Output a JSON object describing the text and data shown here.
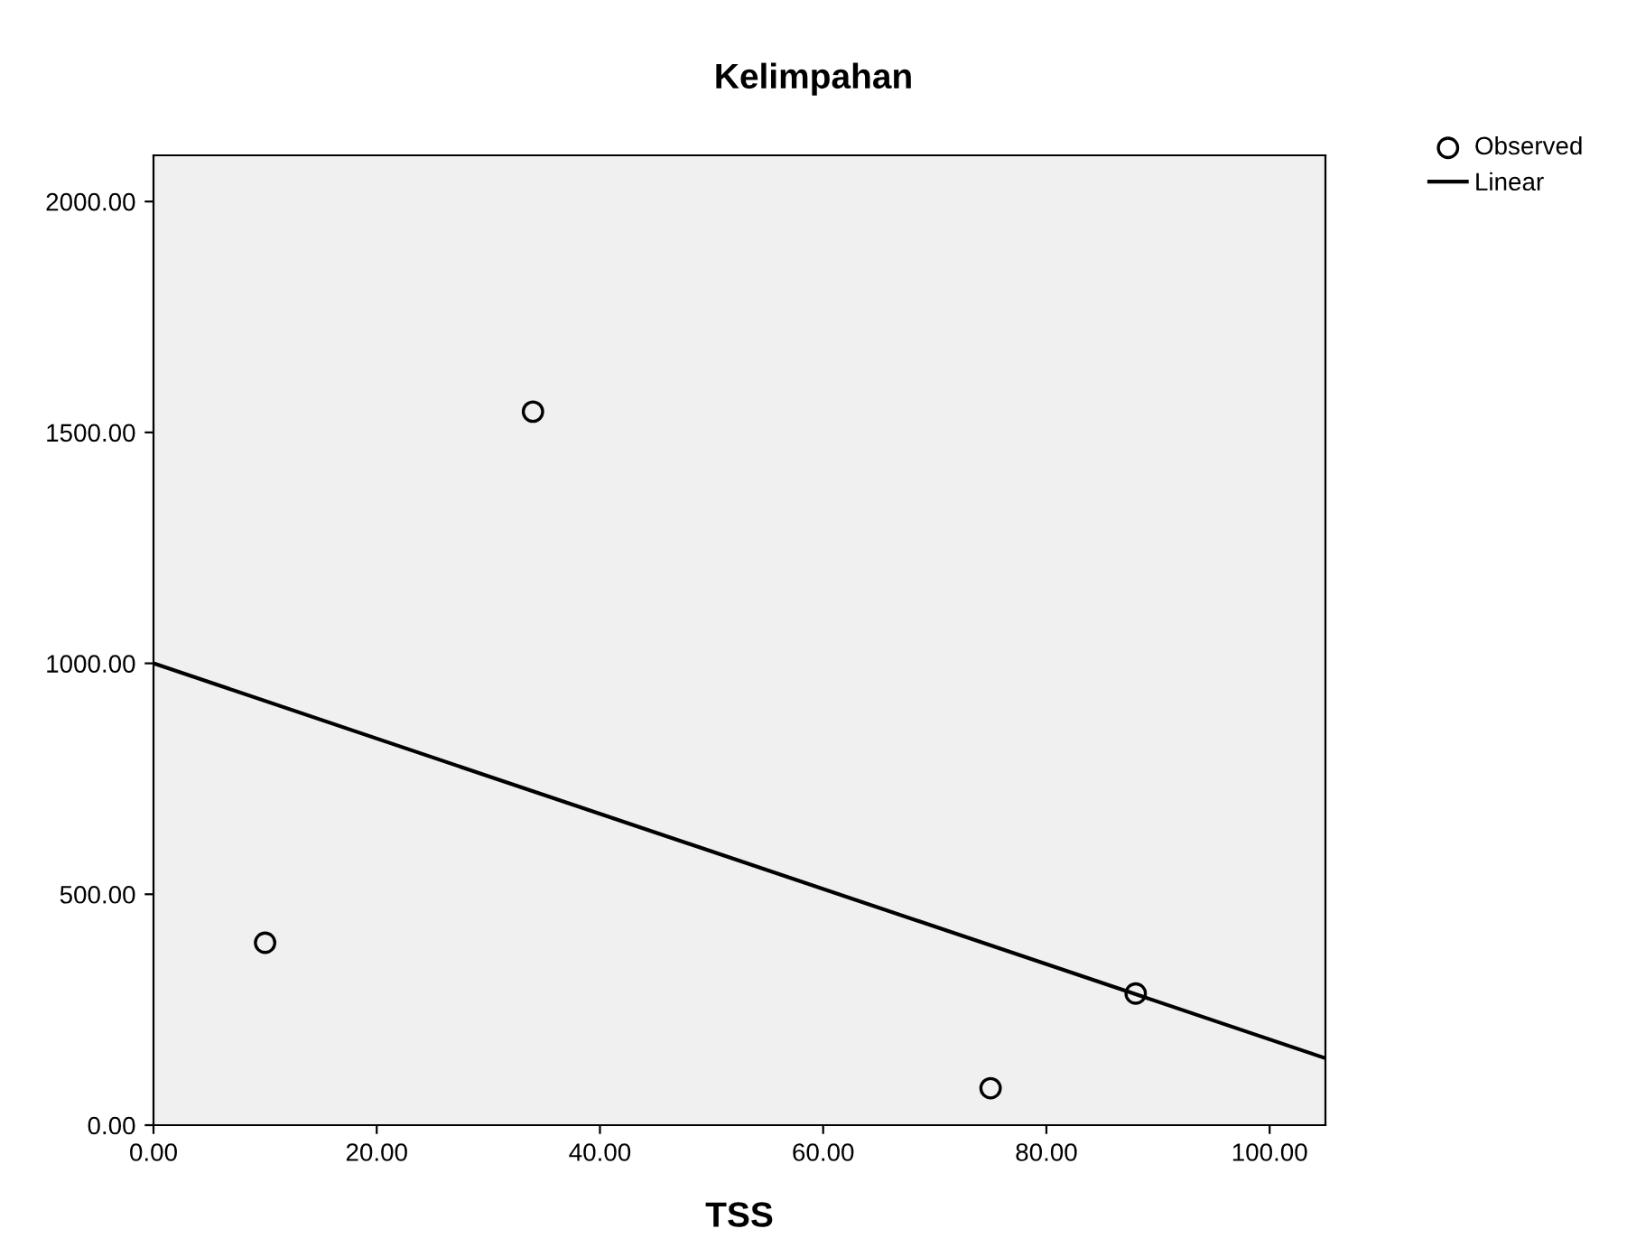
{
  "chart_data": {
    "type": "scatter",
    "title": "Kelimpahan",
    "xlabel": "TSS",
    "series": [
      {
        "name": "Observed",
        "color": "#000000",
        "x": [
          10,
          34,
          75,
          88
        ],
        "values": [
          395,
          1545,
          80,
          285
        ],
        "marker": "circle"
      },
      {
        "name": "Linear",
        "type": "line",
        "color": "#000000",
        "x": [
          0,
          105
        ],
        "values": [
          1000,
          145
        ],
        "line_style": "solid"
      }
    ],
    "xlim": [
      0,
      105
    ],
    "xticks": [
      {
        "value": 0,
        "label": "0.00"
      },
      {
        "value": 20,
        "label": "20.00"
      },
      {
        "value": 40,
        "label": "40.00"
      },
      {
        "value": 60,
        "label": "60.00"
      },
      {
        "value": 80,
        "label": "80.00"
      },
      {
        "value": 100,
        "label": "100.00"
      }
    ],
    "ylim": [
      0,
      2100
    ],
    "yticks": [
      {
        "value": 0,
        "label": "0.00"
      },
      {
        "value": 500,
        "label": "500.00"
      },
      {
        "value": 1000,
        "label": "1000.00"
      },
      {
        "value": 1500,
        "label": "1500.00"
      },
      {
        "value": 2000,
        "label": "2000.00"
      }
    ],
    "grid": false,
    "legend": "top right"
  }
}
